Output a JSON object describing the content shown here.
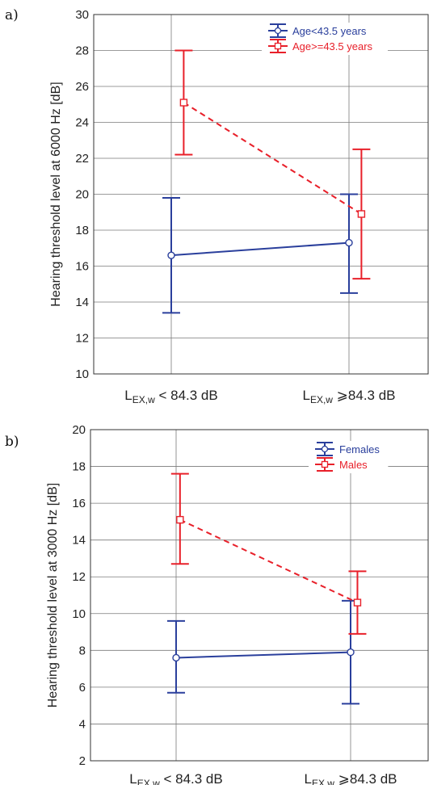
{
  "chart_data": [
    {
      "type": "line",
      "panel_label": "a)",
      "ylabel": "Hearing threshold level at 6000 Hz [dB]",
      "ylim": [
        10,
        30
      ],
      "yticks": [
        10,
        12,
        14,
        16,
        18,
        20,
        22,
        24,
        26,
        28,
        30
      ],
      "categories": [
        {
          "main": "L",
          "sub": "EX,w",
          "rest": " < 84.3 dB"
        },
        {
          "main": "L",
          "sub": "EX,w",
          "rest": " ⩾84.3 dB"
        }
      ],
      "grid": true,
      "legend_position": "top-right",
      "series": [
        {
          "name": "Age<43.5 years",
          "color": "#2a3f9c",
          "marker": "circle",
          "line": "solid",
          "values": [
            16.6,
            17.3
          ],
          "lower": [
            13.4,
            14.5
          ],
          "upper": [
            19.8,
            20.0
          ],
          "offset": [
            0,
            0
          ]
        },
        {
          "name": "Age>=43.5 years",
          "color": "#e8202a",
          "marker": "square",
          "line": "dashed",
          "values": [
            25.1,
            18.9
          ],
          "lower": [
            22.2,
            15.3
          ],
          "upper": [
            28.0,
            22.5
          ],
          "offset": [
            0.25,
            0.25
          ]
        }
      ]
    },
    {
      "type": "line",
      "panel_label": "b)",
      "ylabel": "Hearing threshold level at 3000 Hz [dB]",
      "ylim": [
        2,
        20
      ],
      "yticks": [
        2,
        4,
        6,
        8,
        10,
        12,
        14,
        16,
        18,
        20
      ],
      "categories": [
        {
          "main": "L",
          "sub": "EX,w",
          "rest": " < 84.3 dB"
        },
        {
          "main": "L",
          "sub": "EX,w",
          "rest": " ⩾84.3 dB"
        }
      ],
      "grid": true,
      "legend_position": "top-right",
      "series": [
        {
          "name": "Females",
          "color": "#2a3f9c",
          "marker": "circle",
          "line": "solid",
          "values": [
            7.6,
            7.9
          ],
          "lower": [
            5.7,
            5.1
          ],
          "upper": [
            9.6,
            10.7
          ],
          "offset": [
            0,
            0
          ]
        },
        {
          "name": "Males",
          "color": "#e8202a",
          "marker": "square",
          "line": "dashed",
          "values": [
            15.1,
            10.6
          ],
          "lower": [
            12.7,
            8.9
          ],
          "upper": [
            17.6,
            12.3
          ],
          "offset": [
            0.08,
            0.14
          ]
        }
      ]
    }
  ]
}
